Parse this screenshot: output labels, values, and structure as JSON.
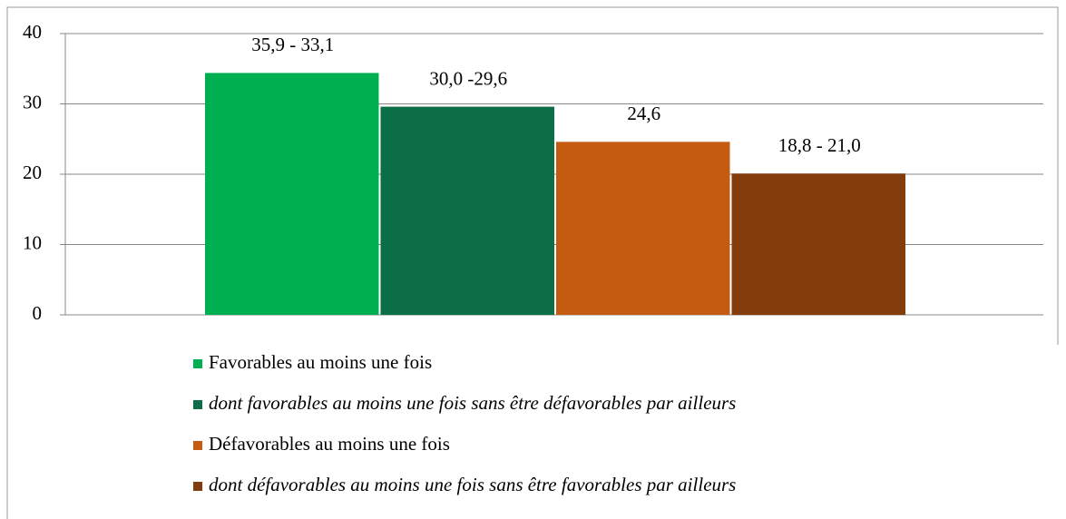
{
  "chart_data": {
    "type": "bar",
    "series": [
      {
        "name": "Favorables au moins une fois",
        "color": "#00b050",
        "values": [
          34.4
        ]
      },
      {
        "name": "dont favorables au moins une fois sans être défavorables par ailleurs",
        "color": "#0c6e47",
        "values": [
          29.6
        ],
        "italic": true
      },
      {
        "name": "Défavorables au moins une fois",
        "color": "#c55a11",
        "values": [
          24.6
        ]
      },
      {
        "name": "dont défavorables au moins une fois sans être favorables par ailleurs",
        "color": "#843c0c",
        "values": [
          20.1
        ],
        "italic": true
      }
    ],
    "annotations": [
      "35,9 - 33,1",
      "30,0 -29,6",
      "24,6",
      "18,8 - 21,0"
    ],
    "ylim": [
      0,
      40
    ],
    "yticks": [
      0,
      10,
      20,
      30,
      40
    ],
    "grid": true
  }
}
